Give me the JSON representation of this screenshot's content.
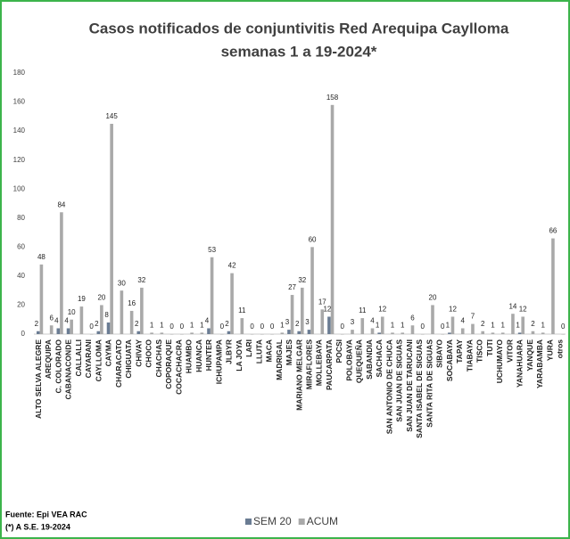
{
  "chart_data": {
    "type": "bar",
    "title": "Casos notificados de conjuntivitis Red Arequipa Caylloma",
    "subtitle": "semanas 1 a 19-2024*",
    "categories": [
      "ALTO SELVA ALEGRE",
      "AREQUIPA",
      "C. COLORADO",
      "CABANACONDE",
      "CALLALLI",
      "CAYARANI",
      "CAYLLOMA",
      "CAYMA",
      "CHARACATO",
      "CHIGUATA",
      "CHIVAY",
      "CHOCO",
      "CHACHAS",
      "COPORAQUE",
      "COCACHACRA",
      "HUAMBO",
      "HUANCA",
      "HUNTER",
      "ICHUPAMPA",
      "JLBYR",
      "LA JOYA",
      "LARI",
      "LLUTA",
      "MACA",
      "MADRIGAL",
      "MAJES",
      "MARIANO MELGAR",
      "MIRAFLORES",
      "MOLLEBAYA",
      "PAUCARPATA",
      "POCSI",
      "POLOBAYA",
      "QUEQUEÑA",
      "SABANDIA",
      "SACHACA",
      "SAN ANTONIO DE CHUCA",
      "SAN JUAN DE SIGUAS",
      "SAN JUAN DE TARUCANI",
      "SANTA ISABEL DE SIGUAS",
      "SANTA RITA DE SIGUAS",
      "SIBAYO",
      "SOCABAYA",
      "TAPAY",
      "TIABAYA",
      "TISCO",
      "TUTI",
      "UCHUMAYO",
      "VITOR",
      "YANAHUARA",
      "YANQUE",
      "YARABAMBA",
      "YURA",
      "otros"
    ],
    "series": [
      {
        "name": "SEM 20",
        "color": "#6a7c93",
        "values": [
          2,
          null,
          4,
          4,
          null,
          null,
          2,
          8,
          null,
          null,
          2,
          null,
          null,
          null,
          null,
          null,
          null,
          4,
          null,
          2,
          null,
          null,
          null,
          null,
          null,
          3,
          2,
          3,
          null,
          12,
          null,
          null,
          null,
          null,
          1,
          null,
          null,
          null,
          null,
          null,
          null,
          1,
          null,
          null,
          null,
          null,
          null,
          null,
          1,
          null,
          null,
          null,
          null
        ]
      },
      {
        "name": "ACUM",
        "color": "#a9a9a9",
        "values": [
          48,
          6,
          84,
          10,
          19,
          0,
          20,
          145,
          30,
          16,
          32,
          1,
          1,
          0,
          0,
          1,
          1,
          53,
          0,
          42,
          11,
          0,
          0,
          0,
          1,
          27,
          32,
          60,
          17,
          158,
          0,
          3,
          11,
          4,
          12,
          1,
          1,
          6,
          0,
          20,
          0,
          12,
          4,
          7,
          2,
          1,
          1,
          14,
          12,
          2,
          1,
          66,
          0
        ]
      }
    ],
    "ylim": [
      0,
      180
    ],
    "yticks": [
      0,
      20,
      40,
      60,
      80,
      100,
      120,
      140,
      160,
      180
    ],
    "grid": false,
    "footnotes": [
      "Fuente: Epi VEA RAC",
      "(*) A S.E. 19-2024"
    ]
  }
}
